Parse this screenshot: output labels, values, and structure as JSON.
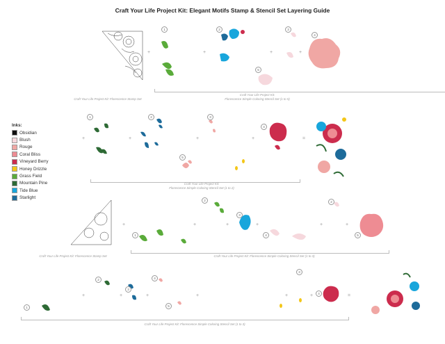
{
  "title": "Craft Your Life Project Kit: Elegant Motifs Stamp & Stencil Set Layering Guide",
  "inks": {
    "heading": "Inks:",
    "items": [
      {
        "name": "Obsidian",
        "color": "#111111"
      },
      {
        "name": "Blush",
        "color": "#f6d8dd"
      },
      {
        "name": "Rouge",
        "color": "#f0a7a4"
      },
      {
        "name": "Coral Bliss",
        "color": "#ee8c93"
      },
      {
        "name": "Vineyard Berry",
        "color": "#cc2c4d"
      },
      {
        "name": "Honey Drizzle",
        "color": "#f3c618"
      },
      {
        "name": "Grass Field",
        "color": "#5aab3a"
      },
      {
        "name": "Mountain Pine",
        "color": "#2e6a35"
      },
      {
        "name": "Tide Blue",
        "color": "#18a6dc"
      },
      {
        "name": "Starlight",
        "color": "#1d6b9a"
      }
    ]
  },
  "captions": {
    "r1_stamp": "Craft Your Life Project Kit: Florescence Stamp Set",
    "r1_stencil_line1": "Craft Your Life Project Kit:",
    "r1_stencil_line2": "Florescence Simple Coloring Stencil Set (1 to 5)",
    "r2_stencil_line1": "Craft Your Life Project Kit:",
    "r2_stencil_line2": "Florescence Simple Coloring Stencil Set (1 to 2)",
    "r3_stamp": "Craft Your Life Project Kit: Florescence Stamp Set",
    "r3_stencil": "Craft Your Life Project Kit: Florescence Simple Coloring Stencil Set (1 to 3)",
    "r4_stencil": "Craft Your Life Project Kit: Florescence Simple Coloring Stencil Set (1 to 3)"
  },
  "steps": [
    "1",
    "2",
    "3",
    "4",
    "5"
  ],
  "operators": {
    "plus": "+",
    "equals": "="
  }
}
